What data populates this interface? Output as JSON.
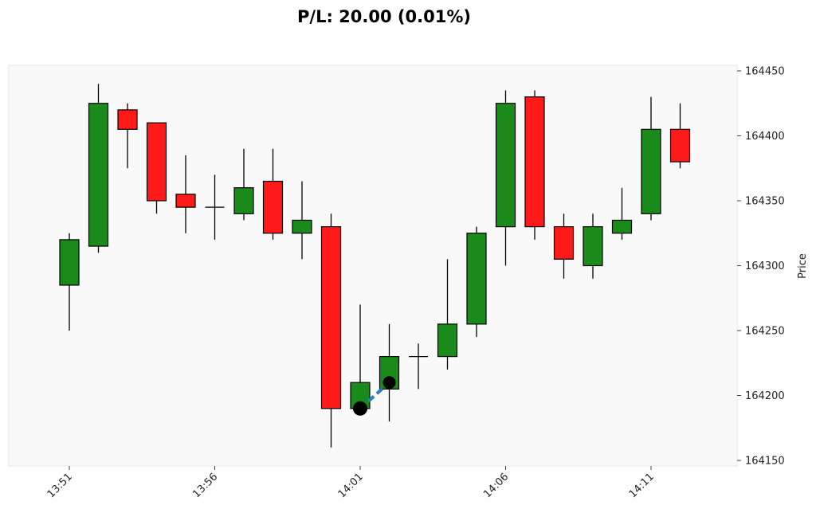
{
  "title": "P/L: 20.00 (0.01%)",
  "colors": {
    "up": "#1a8a1a",
    "down": "#ff1a1a",
    "plot_background": "#f9f9f9",
    "trade_line": "#2a7fc0",
    "marker": "#000000"
  },
  "chart_data": {
    "type": "candlestick",
    "title": "P/L: 20.00 (0.01%)",
    "xlabel": "",
    "ylabel": "Price",
    "ylim": [
      164150,
      164450
    ],
    "y_ticks": [
      164150,
      164200,
      164250,
      164300,
      164350,
      164400,
      164450
    ],
    "x_tick_labels": [
      "13:51",
      "13:56",
      "14:01",
      "14:06",
      "14:11"
    ],
    "grid": false,
    "y_axis_side": "right",
    "candles": [
      {
        "time": "13:51",
        "open": 164285,
        "high": 164325,
        "low": 164250,
        "close": 164320
      },
      {
        "time": "13:52",
        "open": 164315,
        "high": 164440,
        "low": 164310,
        "close": 164425
      },
      {
        "time": "13:53",
        "open": 164420,
        "high": 164425,
        "low": 164375,
        "close": 164405
      },
      {
        "time": "13:54",
        "open": 164410,
        "high": 164410,
        "low": 164340,
        "close": 164350
      },
      {
        "time": "13:55",
        "open": 164355,
        "high": 164385,
        "low": 164325,
        "close": 164345
      },
      {
        "time": "13:56",
        "open": 164345,
        "high": 164370,
        "low": 164320,
        "close": 164345
      },
      {
        "time": "13:57",
        "open": 164340,
        "high": 164390,
        "low": 164335,
        "close": 164360
      },
      {
        "time": "13:58",
        "open": 164365,
        "high": 164390,
        "low": 164320,
        "close": 164325
      },
      {
        "time": "13:59",
        "open": 164325,
        "high": 164365,
        "low": 164305,
        "close": 164335
      },
      {
        "time": "14:00",
        "open": 164330,
        "high": 164340,
        "low": 164160,
        "close": 164190
      },
      {
        "time": "14:01",
        "open": 164190,
        "high": 164270,
        "low": 164190,
        "close": 164210
      },
      {
        "time": "14:02",
        "open": 164205,
        "high": 164255,
        "low": 164180,
        "close": 164230
      },
      {
        "time": "14:03",
        "open": 164230,
        "high": 164240,
        "low": 164205,
        "close": 164230
      },
      {
        "time": "14:04",
        "open": 164230,
        "high": 164305,
        "low": 164220,
        "close": 164255
      },
      {
        "time": "14:05",
        "open": 164255,
        "high": 164330,
        "low": 164245,
        "close": 164325
      },
      {
        "time": "14:06",
        "open": 164330,
        "high": 164435,
        "low": 164300,
        "close": 164425
      },
      {
        "time": "14:07",
        "open": 164430,
        "high": 164435,
        "low": 164320,
        "close": 164330
      },
      {
        "time": "14:08",
        "open": 164330,
        "high": 164340,
        "low": 164290,
        "close": 164305
      },
      {
        "time": "14:09",
        "open": 164300,
        "high": 164340,
        "low": 164290,
        "close": 164330
      },
      {
        "time": "14:10",
        "open": 164325,
        "high": 164360,
        "low": 164320,
        "close": 164335
      },
      {
        "time": "14:11",
        "open": 164340,
        "high": 164430,
        "low": 164335,
        "close": 164405
      },
      {
        "time": "14:12",
        "open": 164405,
        "high": 164425,
        "low": 164375,
        "close": 164380
      }
    ],
    "trade": {
      "entry": {
        "time": "14:01",
        "price": 164190
      },
      "exit": {
        "time": "14:02",
        "price": 164210
      }
    }
  }
}
